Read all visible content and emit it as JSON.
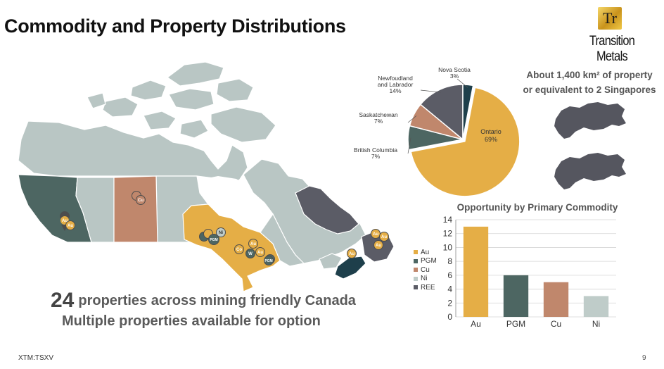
{
  "slide": {
    "title": "Commodity and Property Distributions",
    "footer_ticker": "XTM:TSXV",
    "page_number": "9"
  },
  "logo": {
    "mark": "Tr",
    "name": "Transition Metals"
  },
  "area_note": {
    "line1": "About 1,400 km² of property",
    "line2": "or equivalent to 2 Singapores"
  },
  "summary": {
    "count": "24",
    "headline": "properties across mining friendly Canada",
    "subline": "Multiple properties available for option"
  },
  "colors": {
    "au": "#E5AE46",
    "pgm": "#4D6662",
    "cu": "#C0876C",
    "ni": "#BFCCC9",
    "ree": "#5B5C66",
    "nova_scotia": "#1E3F4B",
    "map_base": "#B9C6C4"
  },
  "map": {
    "markers": [
      {
        "icon": "map-pin-icon",
        "label": "Au"
      },
      {
        "icon": "map-pin-icon",
        "label": "Cu"
      },
      {
        "icon": "map-pin-icon",
        "label": "PGM"
      },
      {
        "icon": "map-pin-icon",
        "label": "Ni"
      },
      {
        "icon": "map-pin-icon",
        "label": "W"
      },
      {
        "icon": "map-pin-icon",
        "label": "Co"
      }
    ]
  },
  "chart_data": [
    {
      "type": "pie",
      "title": "",
      "slices": [
        {
          "label": "Ontario",
          "value": 69,
          "display": "69%"
        },
        {
          "label": "British Columbia",
          "value": 7,
          "display": "7%"
        },
        {
          "label": "Saskatchewan",
          "value": 7,
          "display": "7%"
        },
        {
          "label": "Newfoudland and Labrador",
          "value": 14,
          "display": "14%"
        },
        {
          "label": "Nova Scotia",
          "value": 3,
          "display": "3%"
        }
      ]
    },
    {
      "type": "bar",
      "title": "Opportunity by Primary Commodity",
      "categories": [
        "Au",
        "PGM",
        "Cu",
        "Ni"
      ],
      "values": [
        13,
        6,
        5,
        3
      ],
      "ylim": [
        0,
        14
      ],
      "yticks": [
        0,
        2,
        4,
        6,
        8,
        10,
        12,
        14
      ],
      "grid": true,
      "legend": [
        "Au",
        "PGM",
        "Cu",
        "Ni",
        "REE"
      ],
      "legend_position": "left"
    }
  ]
}
